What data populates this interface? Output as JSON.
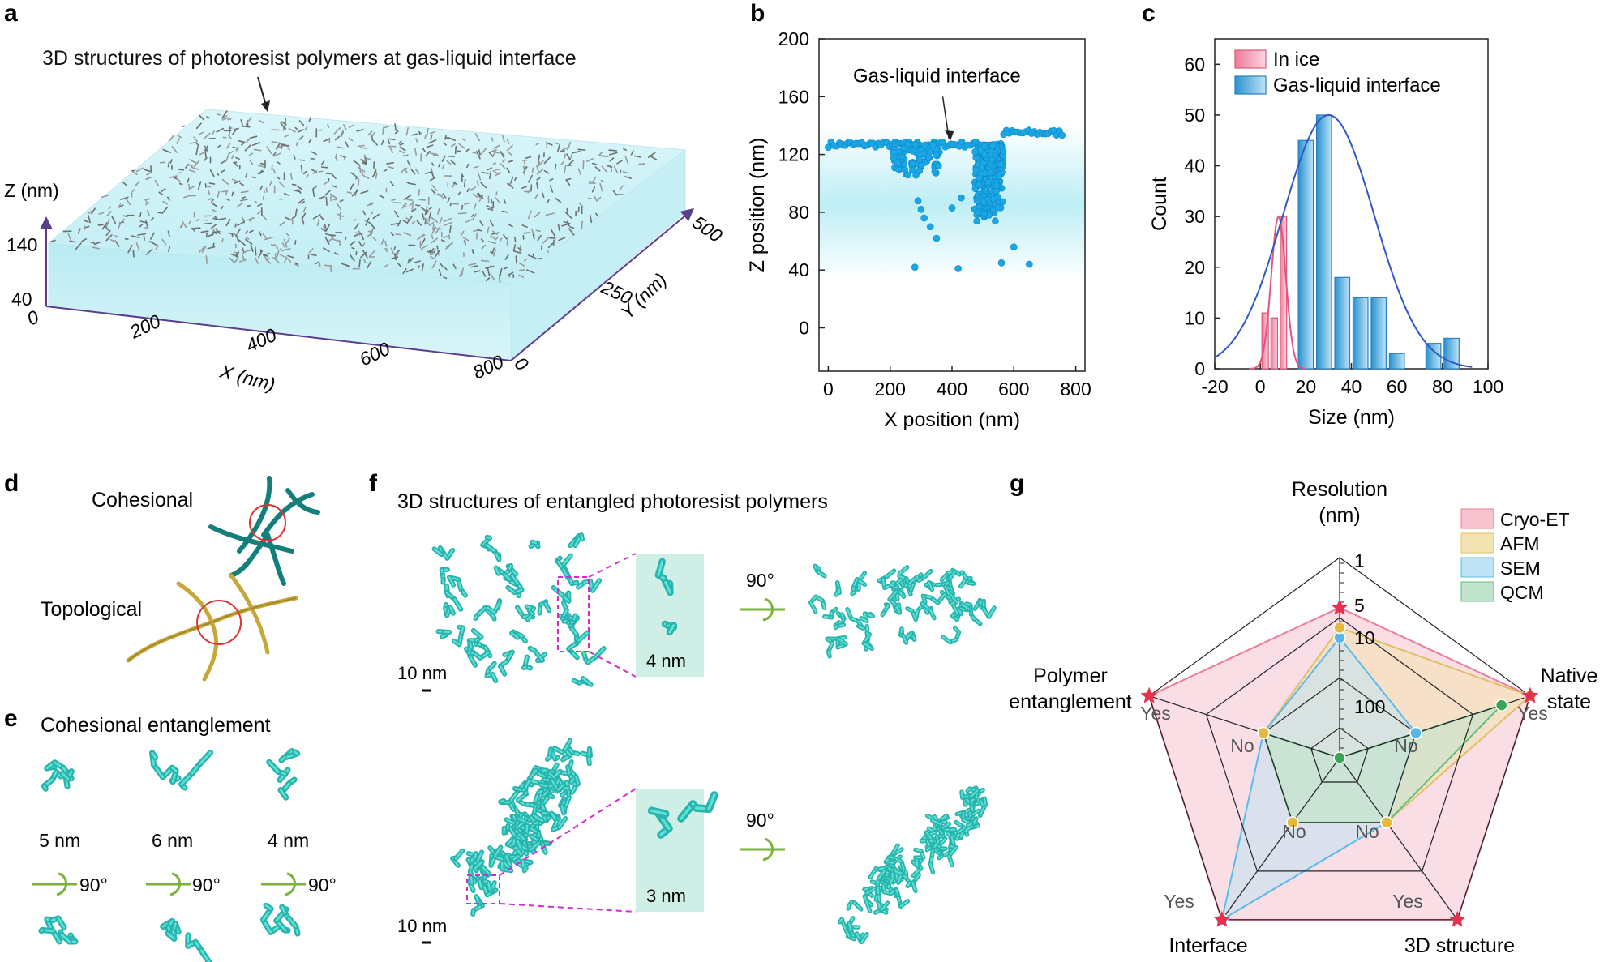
{
  "panels": {
    "a": {
      "label": "a",
      "title": "3D structures of photoresist polymers at gas-liquid interface",
      "z_axis_label": "Z (nm)",
      "z_ticks": [
        "140",
        "40"
      ],
      "x_axis_label": "X (nm)",
      "x_ticks": [
        "0",
        "200",
        "400",
        "600",
        "800"
      ],
      "y_axis_label": "Y (nm)",
      "y_ticks": [
        "0",
        "250",
        "500"
      ]
    },
    "b": {
      "label": "b",
      "annotation": "Gas-liquid interface"
    },
    "c": {
      "label": "c"
    },
    "d": {
      "label": "d",
      "cohesional": "Cohesional",
      "topological": "Topological"
    },
    "e": {
      "label": "e",
      "title": "Cohesional entanglement",
      "sizes": [
        "5 nm",
        "6 nm",
        "4 nm"
      ],
      "rotation": "90°"
    },
    "f": {
      "label": "f",
      "title": "3D structures of entangled photoresist polymers",
      "scale_top": "10 nm",
      "scale_bottom": "10 nm",
      "inset_top": "4 nm",
      "inset_bottom": "3 nm",
      "rotation_top": "90°",
      "rotation_bottom": "90°"
    },
    "g": {
      "label": "g",
      "axes": [
        "Resolution\n(nm)",
        "Native\nstate",
        "3D structure",
        "Interface",
        "Polymer\nentanglement"
      ],
      "radial_ticks": [
        "1",
        "5",
        "10",
        "100"
      ],
      "legend": [
        "Cryo-ET",
        "AFM",
        "SEM",
        "QCM"
      ],
      "colors": {
        "Cryo-ET": "#f6c3cf",
        "AFM": "#f2e2b0",
        "SEM": "#bfe3f4",
        "QCM": "#bfe3cc"
      },
      "point_labels": {
        "yes": "Yes",
        "no": "No"
      }
    }
  },
  "chart_data": [
    {
      "type": "scatter",
      "panel": "b",
      "xlabel": "X position (nm)",
      "ylabel": "Z position (nm)",
      "xlim": [
        -30,
        830
      ],
      "ylim": [
        -30,
        200
      ],
      "xticks": [
        0,
        200,
        400,
        600,
        800
      ],
      "yticks": [
        0,
        40,
        80,
        120,
        160,
        200
      ],
      "band_z": [
        32,
        140
      ],
      "interface_z": 127,
      "interface_x": [
        0,
        760
      ],
      "cluster_a": {
        "x": [
          210,
          360
        ],
        "z": [
          105,
          127
        ]
      },
      "cluster_b": {
        "x": [
          470,
          590
        ],
        "z": [
          72,
          127
        ]
      },
      "x": [
        290,
        300,
        310,
        330,
        350,
        400,
        430,
        540,
        600,
        650,
        280,
        420,
        560
      ],
      "y": [
        88,
        82,
        76,
        70,
        62,
        83,
        90,
        74,
        56,
        44,
        42,
        41,
        45
      ],
      "color": "#1aa7e6"
    },
    {
      "type": "bar",
      "panel": "c",
      "xlabel": "Size (nm)",
      "ylabel": "Count",
      "xlim": [
        -20,
        100
      ],
      "ylim": [
        0,
        65
      ],
      "xticks": [
        -20,
        0,
        20,
        40,
        60,
        80,
        100
      ],
      "yticks": [
        0,
        10,
        20,
        30,
        40,
        50,
        60
      ],
      "legend_position": "top-left",
      "series": [
        {
          "name": "In ice",
          "color": "#f08aa4",
          "x": [
            0,
            4,
            8
          ],
          "widths": [
            4,
            4,
            4
          ],
          "values": [
            11,
            10,
            30
          ],
          "fit": {
            "mean": 8,
            "sd": 3.2,
            "peak": 30
          }
        },
        {
          "name": "Gas-liquid interface",
          "color": "#4aa9dd",
          "x": [
            0,
            4,
            8,
            16,
            24,
            32,
            40,
            48,
            56,
            64,
            72,
            80,
            88
          ],
          "widths": [
            4,
            4,
            4,
            8,
            8,
            8,
            8,
            8,
            8,
            8,
            8,
            8,
            8
          ],
          "values": [
            0,
            10,
            0,
            45,
            50,
            18,
            14,
            14,
            3,
            0,
            5,
            6,
            0
          ],
          "fit": {
            "mean": 30,
            "sd": 20,
            "peak": 50
          }
        }
      ]
    },
    {
      "type": "radar",
      "panel": "g",
      "axes": [
        "Resolution (nm)",
        "Native state",
        "3D structure",
        "Interface",
        "Polymer entanglement"
      ],
      "series": [
        {
          "name": "Cryo-ET",
          "values": [
            0.75,
            1,
            1,
            1,
            1
          ]
        },
        {
          "name": "AFM",
          "values": [
            0.65,
            1,
            0.4,
            0.4,
            0.4
          ]
        },
        {
          "name": "SEM",
          "values": [
            0.6,
            0.4,
            0.4,
            1,
            0.4
          ]
        },
        {
          "name": "QCM",
          "values": [
            0,
            0.85,
            0.4,
            0.4,
            0.4
          ]
        }
      ]
    }
  ]
}
